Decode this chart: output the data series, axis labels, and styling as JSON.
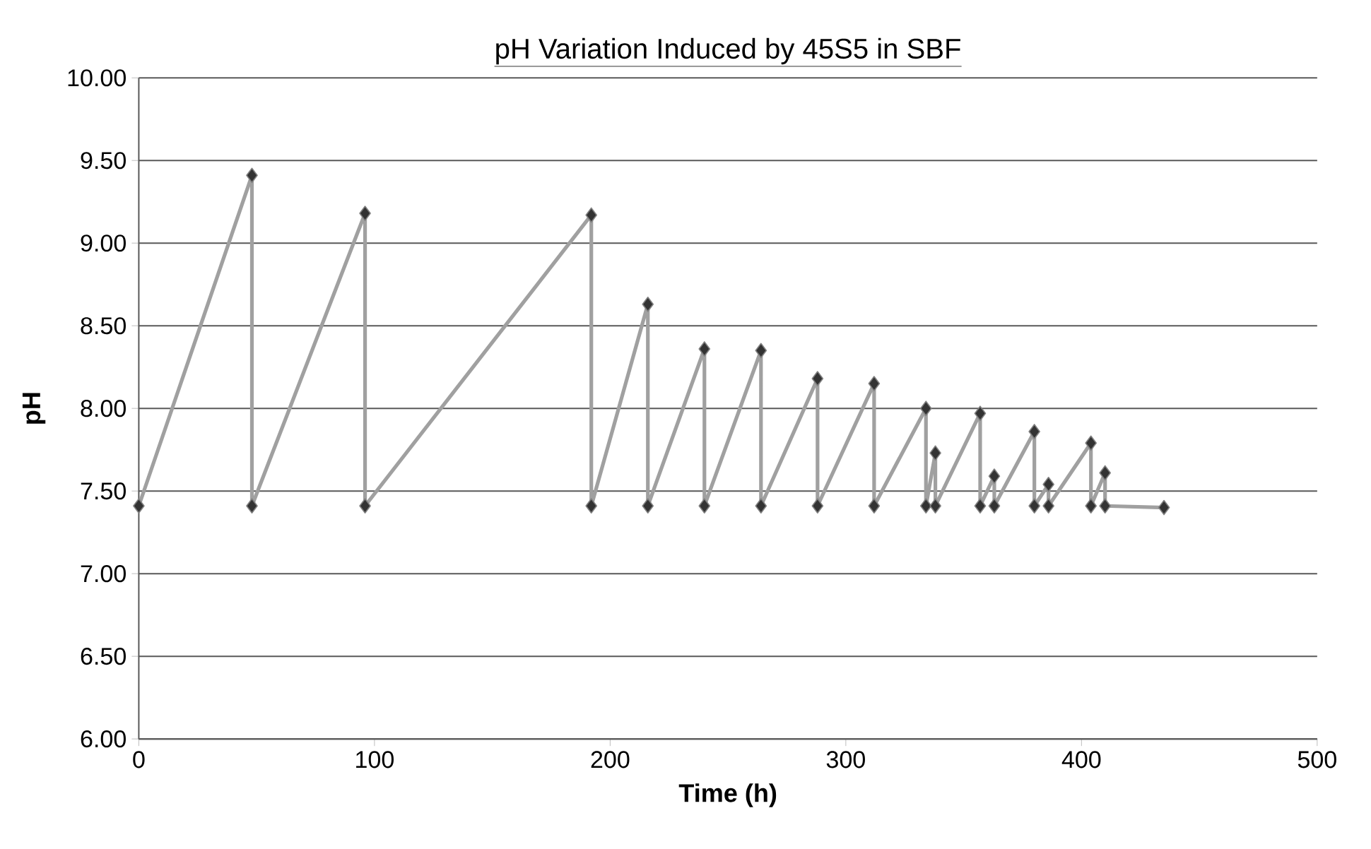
{
  "chart_data": {
    "type": "line",
    "title": "pH Variation Induced by 45S5 in SBF",
    "xlabel": "Time (h)",
    "ylabel": "pH",
    "xlim": [
      0,
      500
    ],
    "xticks": [
      0,
      100,
      200,
      300,
      400,
      500
    ],
    "ylim": [
      6,
      10
    ],
    "yticks": [
      {
        "value": 6,
        "label": "6.00"
      },
      {
        "value": 6.5,
        "label": "6.50"
      },
      {
        "value": 7,
        "label": "7.00"
      },
      {
        "value": 7.5,
        "label": "7.50"
      },
      {
        "value": 8,
        "label": "8.00"
      },
      {
        "value": 8.5,
        "label": "8.50"
      },
      {
        "value": 9,
        "label": "9.00"
      },
      {
        "value": 9.5,
        "label": "9.50"
      },
      {
        "value": 10,
        "label": "10.00"
      }
    ],
    "grid": "y",
    "marker": "diamond",
    "x": [
      0,
      48,
      48,
      96,
      96,
      192,
      192,
      216,
      216,
      240,
      240,
      264,
      264,
      288,
      288,
      312,
      312,
      334,
      334,
      338,
      338,
      357,
      357,
      363,
      363,
      380,
      380,
      386,
      386,
      404,
      404,
      410,
      410,
      435
    ],
    "series": [
      {
        "color": "#a0a0a0",
        "values": [
          7.41,
          9.41,
          7.41,
          9.18,
          7.41,
          9.17,
          7.41,
          8.63,
          7.41,
          8.36,
          7.41,
          8.35,
          7.41,
          8.18,
          7.41,
          8.15,
          7.41,
          8.0,
          7.41,
          7.73,
          7.41,
          7.97,
          7.41,
          7.59,
          7.41,
          7.86,
          7.41,
          7.54,
          7.41,
          7.79,
          7.41,
          7.61,
          7.41,
          7.4
        ]
      }
    ]
  }
}
